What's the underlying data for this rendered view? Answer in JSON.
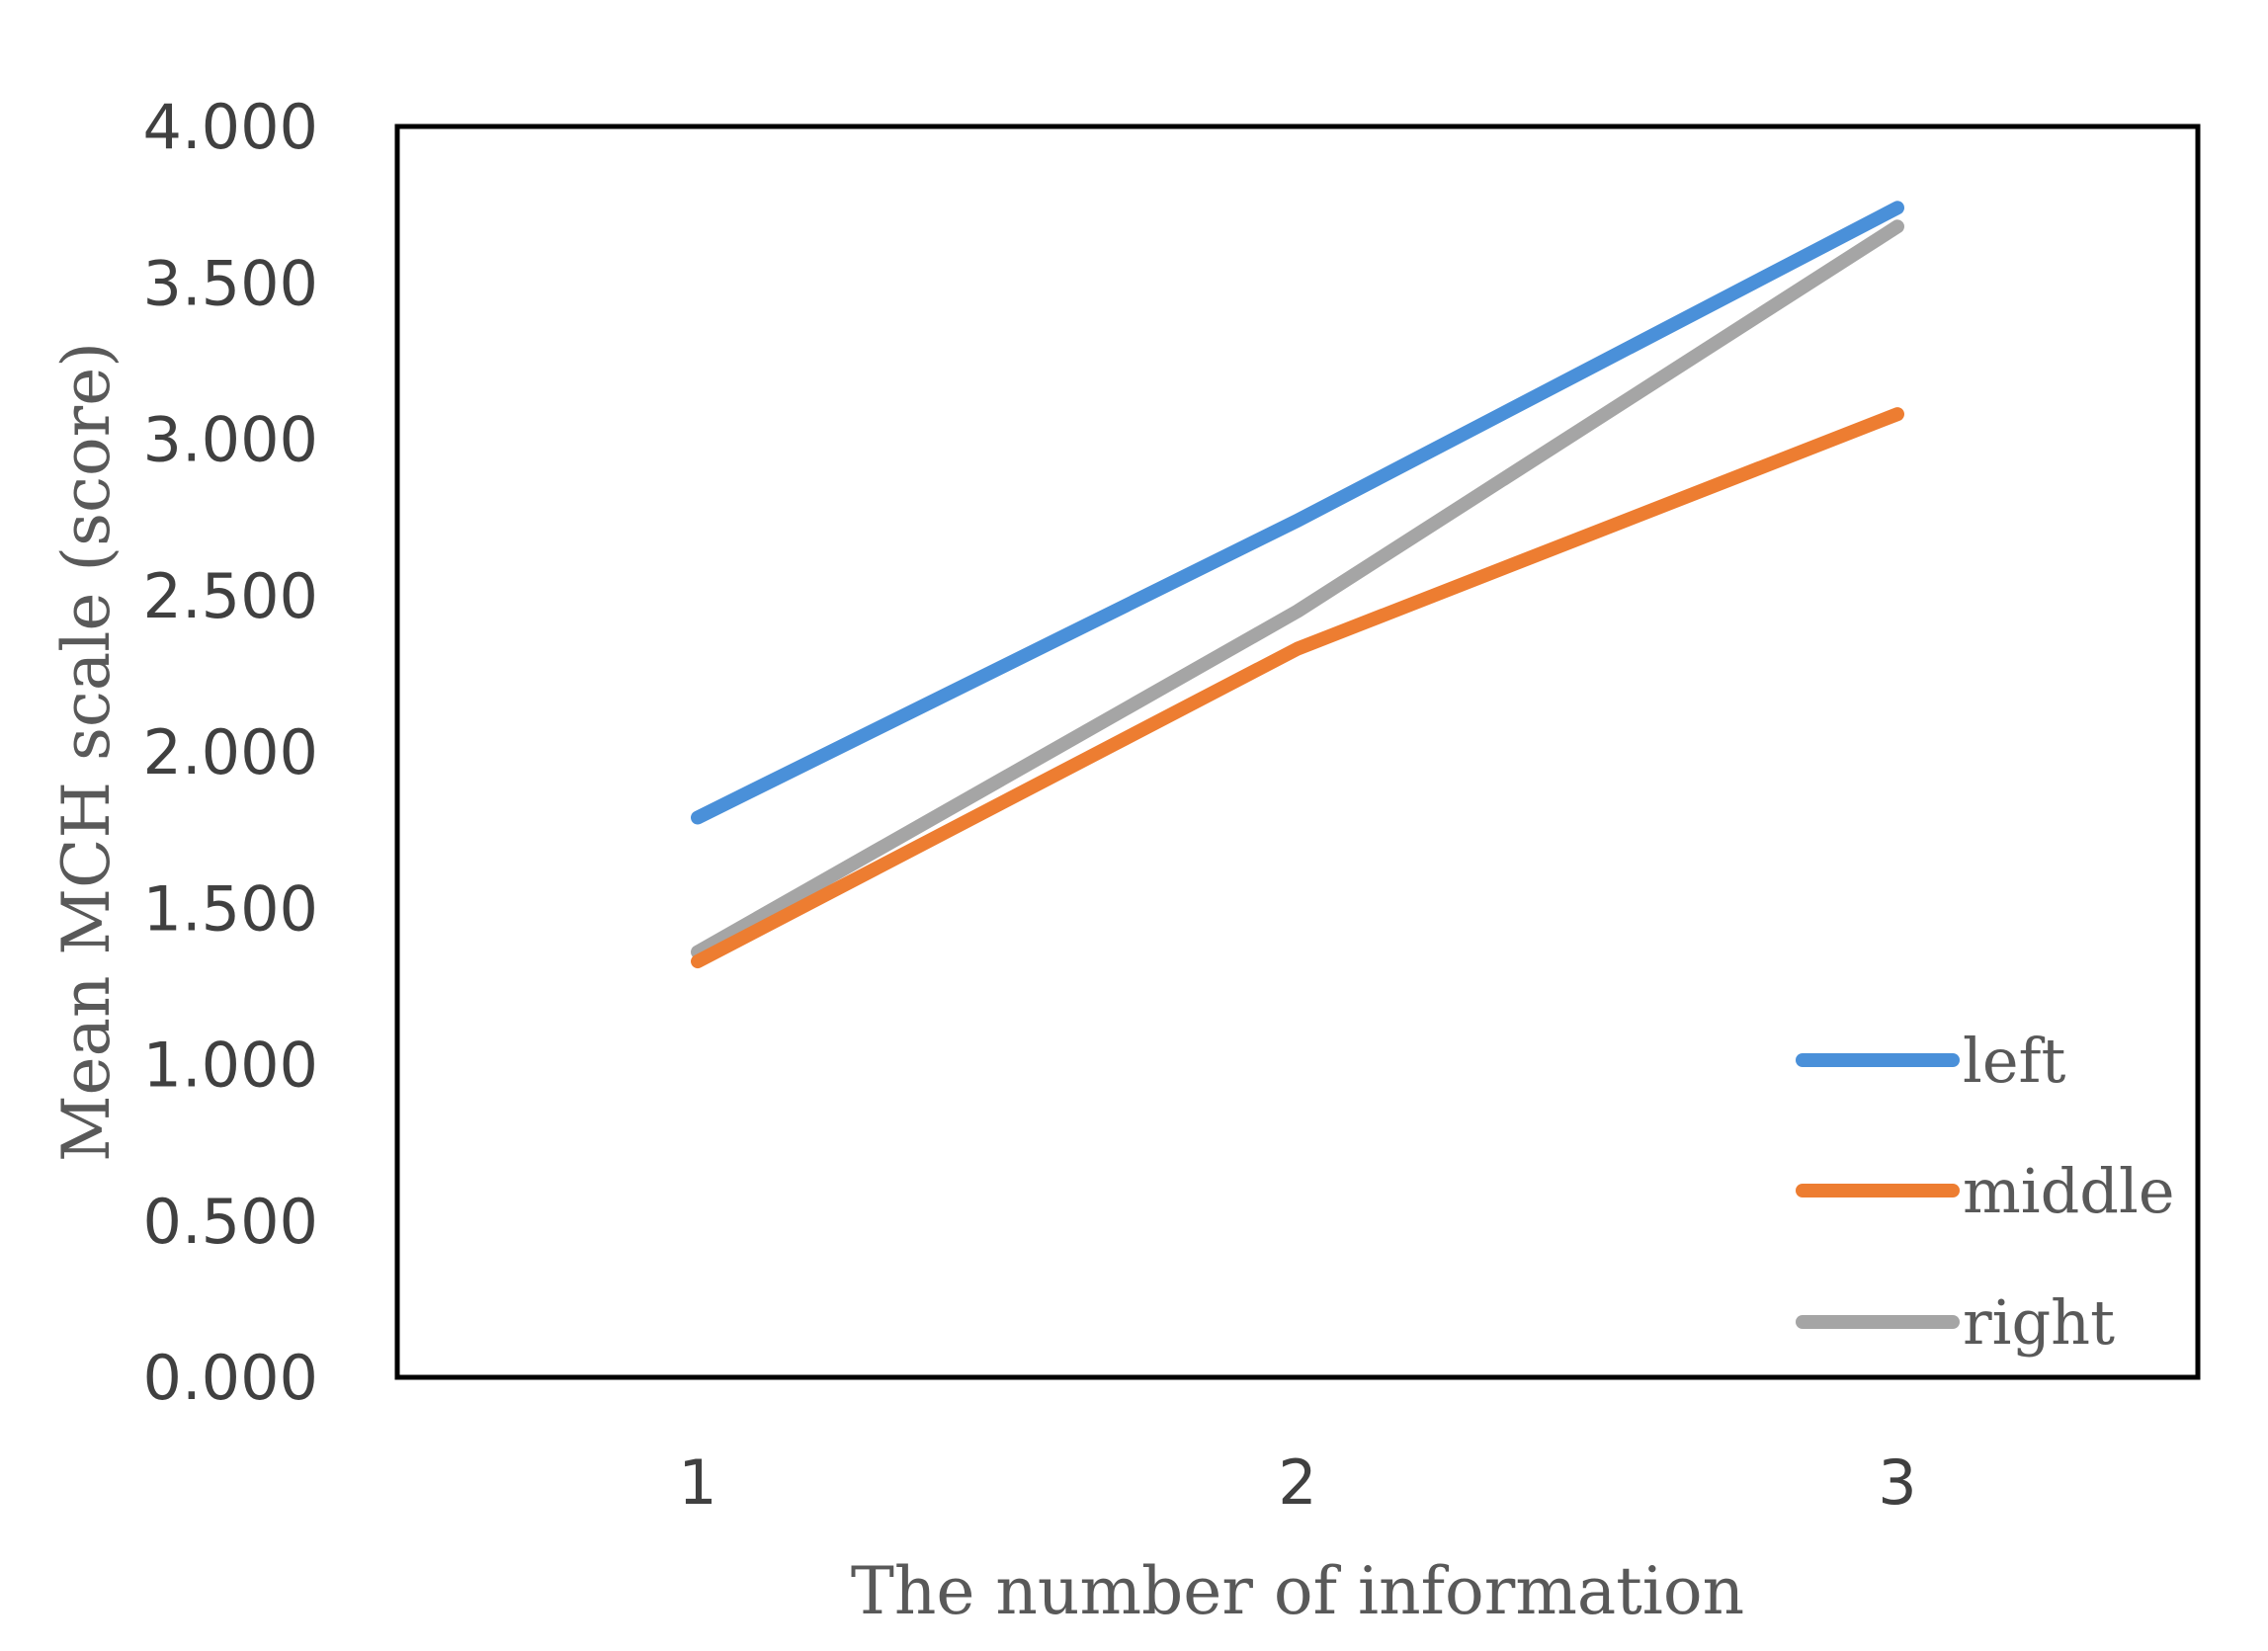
{
  "chart_data": {
    "type": "line",
    "categories": [
      "1",
      "2",
      "3"
    ],
    "xlabel": "The number of information",
    "ylabel": "Mean MCH scale (score)",
    "ylim": [
      0,
      4
    ],
    "yticks": [
      "0.000",
      "0.500",
      "1.000",
      "1.500",
      "2.000",
      "2.500",
      "3.000",
      "3.500",
      "4.000"
    ],
    "grid": false,
    "legend_position": "bottom-right",
    "series": [
      {
        "name": "left",
        "values": [
          1.79,
          2.74,
          3.74
        ],
        "color": "#4a90d9"
      },
      {
        "name": "middle",
        "values": [
          1.33,
          2.33,
          3.08
        ],
        "color": "#ed7d31"
      },
      {
        "name": "right",
        "values": [
          1.36,
          2.45,
          3.68
        ],
        "color": "#a5a5a5"
      }
    ]
  }
}
